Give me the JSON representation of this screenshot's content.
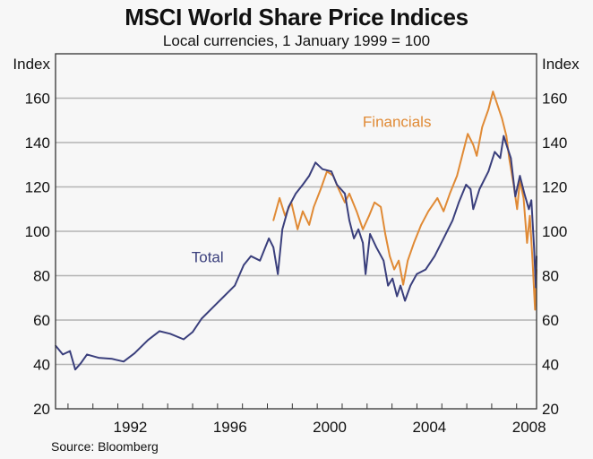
{
  "chart_data": {
    "type": "line",
    "title": "MSCI World Share Price Indices",
    "subtitle": "Local currencies, 1 January 1999 = 100",
    "source": "Source: Bloomberg",
    "ylabel_left": "Index",
    "ylabel_right": "Index",
    "xlabel": "",
    "ylim": [
      20,
      180
    ],
    "xlim": [
      1989.5,
      2008.8
    ],
    "yticks": [
      20,
      40,
      60,
      80,
      100,
      120,
      140,
      160
    ],
    "ytick_labels": [
      "20",
      "40",
      "60",
      "80",
      "100",
      "120",
      "140",
      "160"
    ],
    "xticks_years": [
      1990,
      1991,
      1992,
      1993,
      1994,
      1995,
      1996,
      1997,
      1998,
      1999,
      2000,
      2001,
      2002,
      2003,
      2004,
      2005,
      2006,
      2007,
      2008
    ],
    "xtick_labels": [
      {
        "label": "1992",
        "at": 1992.5
      },
      {
        "label": "1996",
        "at": 1996.5
      },
      {
        "label": "2000",
        "at": 2000.5
      },
      {
        "label": "2004",
        "at": 2004.5
      },
      {
        "label": "2008",
        "at": 2008.5
      }
    ],
    "grid": true,
    "series": [
      {
        "name": "Total",
        "color": "#3a3f7c",
        "label_at": {
          "x": 1995.6,
          "y": 86
        },
        "points": [
          [
            1989.5,
            48.5
          ],
          [
            1989.79,
            44.5
          ],
          [
            1990.08,
            46.0
          ],
          [
            1990.29,
            37.7
          ],
          [
            1990.51,
            40.5
          ],
          [
            1990.76,
            44.5
          ],
          [
            1991.23,
            43.0
          ],
          [
            1991.77,
            42.5
          ],
          [
            1992.23,
            41.3
          ],
          [
            1992.67,
            45.0
          ],
          [
            1993.21,
            51.0
          ],
          [
            1993.67,
            55.0
          ],
          [
            1994.1,
            53.8
          ],
          [
            1994.64,
            51.3
          ],
          [
            1995.0,
            54.6
          ],
          [
            1995.36,
            60.6
          ],
          [
            1995.9,
            66.7
          ],
          [
            1996.26,
            70.7
          ],
          [
            1996.69,
            75.5
          ],
          [
            1997.05,
            84.8
          ],
          [
            1997.34,
            88.8
          ],
          [
            1997.7,
            86.8
          ],
          [
            1998.06,
            96.8
          ],
          [
            1998.24,
            92.8
          ],
          [
            1998.42,
            80.7
          ],
          [
            1998.6,
            100.9
          ],
          [
            1998.85,
            111.0
          ],
          [
            1999.14,
            117.0
          ],
          [
            1999.42,
            121.0
          ],
          [
            1999.68,
            125.0
          ],
          [
            1999.93,
            131.0
          ],
          [
            2000.21,
            128.0
          ],
          [
            2000.57,
            127.0
          ],
          [
            2000.79,
            121.0
          ],
          [
            2001.11,
            117.0
          ],
          [
            2001.29,
            104.9
          ],
          [
            2001.47,
            96.8
          ],
          [
            2001.65,
            100.9
          ],
          [
            2001.83,
            94.8
          ],
          [
            2001.94,
            80.7
          ],
          [
            2002.12,
            98.8
          ],
          [
            2002.37,
            92.8
          ],
          [
            2002.66,
            86.8
          ],
          [
            2002.84,
            75.5
          ],
          [
            2003.02,
            78.7
          ],
          [
            2003.2,
            70.7
          ],
          [
            2003.34,
            75.5
          ],
          [
            2003.52,
            68.7
          ],
          [
            2003.74,
            75.5
          ],
          [
            2003.99,
            80.7
          ],
          [
            2004.35,
            82.8
          ],
          [
            2004.71,
            88.8
          ],
          [
            2005.07,
            96.8
          ],
          [
            2005.43,
            104.9
          ],
          [
            2005.68,
            113.0
          ],
          [
            2005.97,
            121.0
          ],
          [
            2006.15,
            119.0
          ],
          [
            2006.26,
            110.0
          ],
          [
            2006.51,
            119.0
          ],
          [
            2006.87,
            127.0
          ],
          [
            2007.12,
            135.8
          ],
          [
            2007.34,
            133.0
          ],
          [
            2007.48,
            143.0
          ],
          [
            2007.62,
            138.0
          ],
          [
            2007.77,
            133.0
          ],
          [
            2007.95,
            115.7
          ],
          [
            2008.13,
            125.0
          ],
          [
            2008.31,
            117.0
          ],
          [
            2008.49,
            110.0
          ],
          [
            2008.59,
            114.0
          ],
          [
            2008.7,
            92.8
          ],
          [
            2008.77,
            74.7
          ],
          [
            2008.8,
            88.8
          ]
        ]
      },
      {
        "name": "Financials",
        "color": "#e08a35",
        "label_at": {
          "x": 2003.2,
          "y": 147
        },
        "points": [
          [
            1998.24,
            104.9
          ],
          [
            1998.49,
            115.0
          ],
          [
            1998.71,
            107.0
          ],
          [
            1998.96,
            113.0
          ],
          [
            1999.21,
            100.9
          ],
          [
            1999.42,
            109.0
          ],
          [
            1999.68,
            102.9
          ],
          [
            1999.86,
            111.0
          ],
          [
            2000.14,
            119.0
          ],
          [
            2000.39,
            127.0
          ],
          [
            2000.64,
            125.0
          ],
          [
            2000.86,
            119.0
          ],
          [
            2001.11,
            113.0
          ],
          [
            2001.29,
            117.0
          ],
          [
            2001.58,
            109.0
          ],
          [
            2001.83,
            100.9
          ],
          [
            2002.08,
            107.0
          ],
          [
            2002.3,
            113.0
          ],
          [
            2002.55,
            111.0
          ],
          [
            2002.73,
            98.8
          ],
          [
            2002.91,
            88.8
          ],
          [
            2003.09,
            82.8
          ],
          [
            2003.27,
            86.8
          ],
          [
            2003.45,
            75.9
          ],
          [
            2003.63,
            86.8
          ],
          [
            2003.88,
            94.8
          ],
          [
            2004.17,
            102.9
          ],
          [
            2004.46,
            109.0
          ],
          [
            2004.82,
            115.0
          ],
          [
            2005.07,
            109.0
          ],
          [
            2005.32,
            117.0
          ],
          [
            2005.61,
            125.0
          ],
          [
            2005.79,
            133.0
          ],
          [
            2006.04,
            143.9
          ],
          [
            2006.26,
            139.0
          ],
          [
            2006.4,
            134.0
          ],
          [
            2006.62,
            147.0
          ],
          [
            2006.87,
            155.0
          ],
          [
            2007.05,
            163.0
          ],
          [
            2007.23,
            157.0
          ],
          [
            2007.41,
            151.0
          ],
          [
            2007.59,
            143.0
          ],
          [
            2007.7,
            133.0
          ],
          [
            2007.88,
            121.0
          ],
          [
            2008.02,
            110.0
          ],
          [
            2008.13,
            123.0
          ],
          [
            2008.28,
            115.0
          ],
          [
            2008.42,
            94.8
          ],
          [
            2008.53,
            107.0
          ],
          [
            2008.64,
            86.8
          ],
          [
            2008.74,
            64.7
          ],
          [
            2008.8,
            82.8
          ]
        ]
      }
    ]
  }
}
